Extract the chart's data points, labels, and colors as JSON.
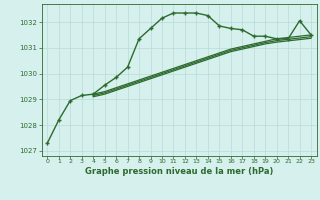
{
  "title": "Graphe pression niveau de la mer (hPa)",
  "bg_color": "#d6f0ee",
  "grid_color": "#b8dbd8",
  "line_color": "#2d6a2d",
  "xlim": [
    -0.5,
    23.5
  ],
  "ylim": [
    1026.8,
    1032.7
  ],
  "yticks": [
    1027,
    1028,
    1029,
    1030,
    1031,
    1032
  ],
  "xticks": [
    0,
    1,
    2,
    3,
    4,
    5,
    6,
    7,
    8,
    9,
    10,
    11,
    12,
    13,
    14,
    15,
    16,
    17,
    18,
    19,
    20,
    21,
    22,
    23
  ],
  "main_line": {
    "x": [
      0,
      1,
      2,
      3,
      4,
      5,
      6,
      7,
      8,
      9,
      10,
      11,
      12,
      13,
      14,
      15,
      16,
      17,
      18,
      19,
      20,
      21,
      22,
      23
    ],
    "y": [
      1027.3,
      1028.2,
      1028.95,
      1029.15,
      1029.2,
      1029.55,
      1029.85,
      1030.25,
      1031.35,
      1031.75,
      1032.15,
      1032.35,
      1032.35,
      1032.35,
      1032.25,
      1031.85,
      1031.75,
      1031.7,
      1031.45,
      1031.45,
      1031.35,
      1031.35,
      1032.05,
      1031.5
    ]
  },
  "line2": {
    "x": [
      4,
      5,
      6,
      7,
      8,
      9,
      10,
      11,
      12,
      13,
      14,
      15,
      16,
      17,
      18,
      19,
      20,
      21,
      22,
      23
    ],
    "y": [
      1029.2,
      1029.3,
      1029.45,
      1029.6,
      1029.75,
      1029.9,
      1030.05,
      1030.2,
      1030.35,
      1030.5,
      1030.65,
      1030.8,
      1030.95,
      1031.05,
      1031.15,
      1031.25,
      1031.35,
      1031.4,
      1031.45,
      1031.5
    ]
  },
  "line3": {
    "x": [
      4,
      5,
      6,
      7,
      8,
      9,
      10,
      11,
      12,
      13,
      14,
      15,
      16,
      17,
      18,
      19,
      20,
      21,
      22,
      23
    ],
    "y": [
      1029.15,
      1029.25,
      1029.4,
      1029.55,
      1029.7,
      1029.85,
      1030.0,
      1030.15,
      1030.3,
      1030.45,
      1030.6,
      1030.75,
      1030.9,
      1031.0,
      1031.1,
      1031.2,
      1031.28,
      1031.33,
      1031.38,
      1031.43
    ]
  },
  "line4": {
    "x": [
      4,
      5,
      6,
      7,
      8,
      9,
      10,
      11,
      12,
      13,
      14,
      15,
      16,
      17,
      18,
      19,
      20,
      21,
      22,
      23
    ],
    "y": [
      1029.1,
      1029.2,
      1029.35,
      1029.5,
      1029.65,
      1029.8,
      1029.95,
      1030.1,
      1030.25,
      1030.4,
      1030.55,
      1030.7,
      1030.85,
      1030.95,
      1031.05,
      1031.15,
      1031.22,
      1031.27,
      1031.32,
      1031.37
    ]
  }
}
